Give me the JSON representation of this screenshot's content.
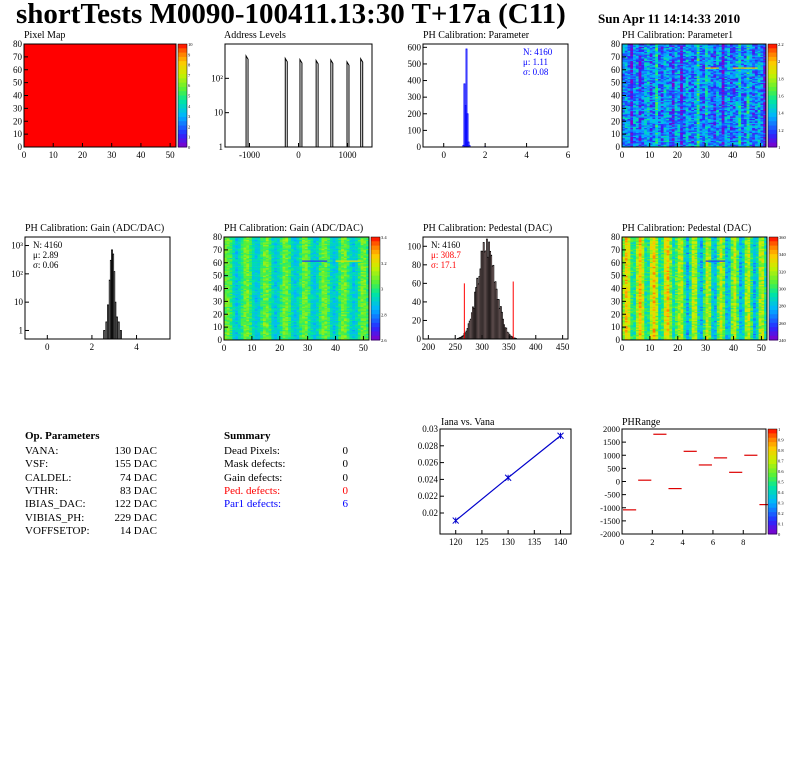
{
  "header": {
    "title": "shortTests M0090-100411.13:30 T+17a (C11)",
    "date": "Sun Apr 11 14:14:33 2010"
  },
  "op_params": {
    "title": "Op. Parameters",
    "rows": [
      {
        "name": "VANA:",
        "value": "130 DAC"
      },
      {
        "name": "VSF:",
        "value": "155 DAC"
      },
      {
        "name": "CALDEL:",
        "value": "74 DAC"
      },
      {
        "name": "VTHR:",
        "value": "83 DAC"
      },
      {
        "name": "IBIAS_DAC:",
        "value": "122 DAC"
      },
      {
        "name": "VIBIAS_PH:",
        "value": "229 DAC"
      },
      {
        "name": "VOFFSETOP:",
        "value": "14 DAC"
      }
    ]
  },
  "summary": {
    "title": "Summary",
    "rows": [
      {
        "name": "Dead Pixels:",
        "value": "0",
        "color": "#000000"
      },
      {
        "name": "Mask defects:",
        "value": "0",
        "color": "#000000"
      },
      {
        "name": "Gain defects:",
        "value": "0",
        "color": "#000000"
      },
      {
        "name": "Ped. defects:",
        "value": "0",
        "color": "#ff0000"
      },
      {
        "name": "Par1 defects:",
        "value": "6",
        "color": "#0000ff"
      }
    ]
  },
  "chart_data": [
    {
      "id": "pixel-map",
      "type": "heatmap",
      "title": "Pixel Map",
      "xlim": [
        0,
        52
      ],
      "ylim": [
        0,
        80
      ],
      "xticks": [
        0,
        10,
        20,
        30,
        40,
        50
      ],
      "yticks": [
        0,
        10,
        20,
        30,
        40,
        50,
        60,
        70,
        80
      ],
      "fill_value": 10,
      "zlim": [
        0,
        10
      ],
      "colorbar_ticks": [
        "10",
        "9",
        "8",
        "7",
        "6",
        "5",
        "4",
        "3",
        "2",
        "1",
        "0"
      ]
    },
    {
      "id": "address-levels",
      "type": "bar",
      "title": "Address Levels",
      "xlim": [
        -1500,
        1500
      ],
      "ylim": [
        1,
        1000
      ],
      "log_y": true,
      "xticks": [
        -1000,
        0,
        1000
      ],
      "xtick_labels": [
        "-1000",
        "0",
        "1000"
      ],
      "yticks": [
        1,
        10,
        100
      ],
      "ytick_labels": [
        "1",
        "10",
        "10²"
      ],
      "peaks": [
        {
          "x": -1050,
          "y": 450
        },
        {
          "x": -250,
          "y": 380
        },
        {
          "x": 50,
          "y": 350
        },
        {
          "x": 380,
          "y": 330
        },
        {
          "x": 680,
          "y": 340
        },
        {
          "x": 1010,
          "y": 300
        },
        {
          "x": 1290,
          "y": 370
        }
      ]
    },
    {
      "id": "ph-param",
      "type": "bar",
      "title": "PH Calibration: Parameter",
      "xlim": [
        -1,
        6
      ],
      "ylim": [
        0,
        620
      ],
      "xticks": [
        0,
        2,
        4,
        6
      ],
      "yticks": [
        0,
        100,
        200,
        300,
        400,
        500,
        600
      ],
      "stats": [
        "N: 4160",
        "μ: 1.11",
        "σ: 0.08"
      ],
      "stats_color": "#0000ff",
      "bins": [
        {
          "x": 0.95,
          "y": 10
        },
        {
          "x": 1.0,
          "y": 380
        },
        {
          "x": 1.05,
          "y": 250
        },
        {
          "x": 1.1,
          "y": 590
        },
        {
          "x": 1.15,
          "y": 200
        },
        {
          "x": 1.2,
          "y": 30
        },
        {
          "x": 1.25,
          "y": 8
        },
        {
          "x": 2.0,
          "y": 2
        }
      ]
    },
    {
      "id": "ph-param1",
      "type": "heatmap",
      "title": "PH Calibration: Parameter1",
      "xlim": [
        0,
        52
      ],
      "ylim": [
        0,
        80
      ],
      "xticks": [
        0,
        10,
        20,
        30,
        40,
        50
      ],
      "yticks": [
        0,
        10,
        20,
        30,
        40,
        50,
        60,
        70,
        80
      ],
      "zlim": [
        0.9,
        2.3
      ],
      "colorbar_ticks": [
        "2.2",
        "2",
        "1.8",
        "1.6",
        "1.4",
        "1.2",
        "1"
      ]
    },
    {
      "id": "ph-gain-hist",
      "type": "bar",
      "title": "PH Calibration: Gain (ADC/DAC)",
      "xlim": [
        -1,
        5.5
      ],
      "ylim": [
        0.5,
        2000
      ],
      "log_y": true,
      "xticks": [
        0,
        2,
        4
      ],
      "yticks": [
        1,
        10,
        100,
        1000
      ],
      "ytick_labels": [
        "1",
        "10",
        "10²",
        "10³"
      ],
      "stats": [
        "N: 4160",
        "μ: 2.89",
        "σ: 0.06"
      ],
      "stats_color": "#000000",
      "bins": [
        {
          "x": 2.55,
          "y": 1
        },
        {
          "x": 2.65,
          "y": 2
        },
        {
          "x": 2.72,
          "y": 8
        },
        {
          "x": 2.8,
          "y": 60
        },
        {
          "x": 2.85,
          "y": 300
        },
        {
          "x": 2.9,
          "y": 700
        },
        {
          "x": 2.95,
          "y": 500
        },
        {
          "x": 3.0,
          "y": 120
        },
        {
          "x": 3.05,
          "y": 10
        },
        {
          "x": 3.12,
          "y": 3
        },
        {
          "x": 3.2,
          "y": 2
        },
        {
          "x": 3.3,
          "y": 1
        }
      ]
    },
    {
      "id": "ph-gain-map",
      "type": "heatmap",
      "title": "PH Calibration: Gain (ADC/DAC)",
      "xlim": [
        0,
        52
      ],
      "ylim": [
        0,
        80
      ],
      "xticks": [
        0,
        10,
        20,
        30,
        40,
        50
      ],
      "yticks": [
        0,
        10,
        20,
        30,
        40,
        50,
        60,
        70,
        80
      ],
      "zlim": [
        2.5,
        3.5
      ],
      "colorbar_ticks": [
        "3.4",
        "3.2",
        "3",
        "2.8",
        "2.6"
      ]
    },
    {
      "id": "ph-pedestal-hist",
      "type": "bar",
      "title": "PH Calibration: Pedestal (DAC)",
      "xlim": [
        190,
        460
      ],
      "ylim": [
        0,
        110
      ],
      "xticks": [
        200,
        250,
        300,
        350,
        400,
        450
      ],
      "yticks": [
        0,
        20,
        40,
        60,
        80,
        100
      ],
      "stats": [
        "N: 4160",
        "μ: 308.7",
        "σ: 17.1"
      ],
      "stats_colors": [
        "#000000",
        "#ff0000",
        "#ff0000"
      ],
      "cut_lines": [
        {
          "x": 267,
          "y": 60
        },
        {
          "x": 358,
          "y": 62
        }
      ],
      "mean": 308.7,
      "sigma": 17.1,
      "peak": 101
    },
    {
      "id": "ph-pedestal-map",
      "type": "heatmap",
      "title": "PH Calibration: Pedestal (DAC)",
      "xlim": [
        0,
        52
      ],
      "ylim": [
        0,
        80
      ],
      "xticks": [
        0,
        10,
        20,
        30,
        40,
        50
      ],
      "yticks": [
        0,
        10,
        20,
        30,
        40,
        50,
        60,
        70,
        80
      ],
      "zlim": [
        235,
        365
      ],
      "colorbar_ticks": [
        "360",
        "340",
        "320",
        "300",
        "280",
        "260",
        "240"
      ]
    },
    {
      "id": "iana-vana",
      "type": "line",
      "title": "Iana vs. Vana",
      "xlim": [
        117,
        142
      ],
      "ylim": [
        0.0175,
        0.03
      ],
      "xticks": [
        120,
        125,
        130,
        135,
        140
      ],
      "yticks": [
        0.02,
        0.022,
        0.024,
        0.026,
        0.028,
        0.03
      ],
      "points": [
        {
          "x": 120,
          "y": 0.0191
        },
        {
          "x": 130,
          "y": 0.0242
        },
        {
          "x": 140,
          "y": 0.0292
        }
      ]
    },
    {
      "id": "phrange",
      "type": "scatter",
      "title": "PHRange",
      "xlim": [
        0,
        9.5
      ],
      "ylim": [
        -2000,
        2000
      ],
      "xticks": [
        0,
        2,
        4,
        6,
        8
      ],
      "yticks": [
        -2000,
        -1500,
        -1000,
        -500,
        0,
        500,
        1000,
        1500,
        2000
      ],
      "zlim": [
        0,
        1
      ],
      "colorbar_ticks": [
        "1",
        "0.9",
        "0.8",
        "0.7",
        "0.6",
        "0.5",
        "0.4",
        "0.3",
        "0.2",
        "0.1",
        "0"
      ],
      "segments": [
        {
          "x": 0,
          "y": -1080
        },
        {
          "x": 1,
          "y": 50
        },
        {
          "x": 2,
          "y": 1800
        },
        {
          "x": 3,
          "y": -270
        },
        {
          "x": 4,
          "y": 1150
        },
        {
          "x": 5,
          "y": 630
        },
        {
          "x": 6,
          "y": 900
        },
        {
          "x": 7,
          "y": 350
        },
        {
          "x": 8,
          "y": 1000
        },
        {
          "x": 9,
          "y": -880
        }
      ]
    }
  ]
}
